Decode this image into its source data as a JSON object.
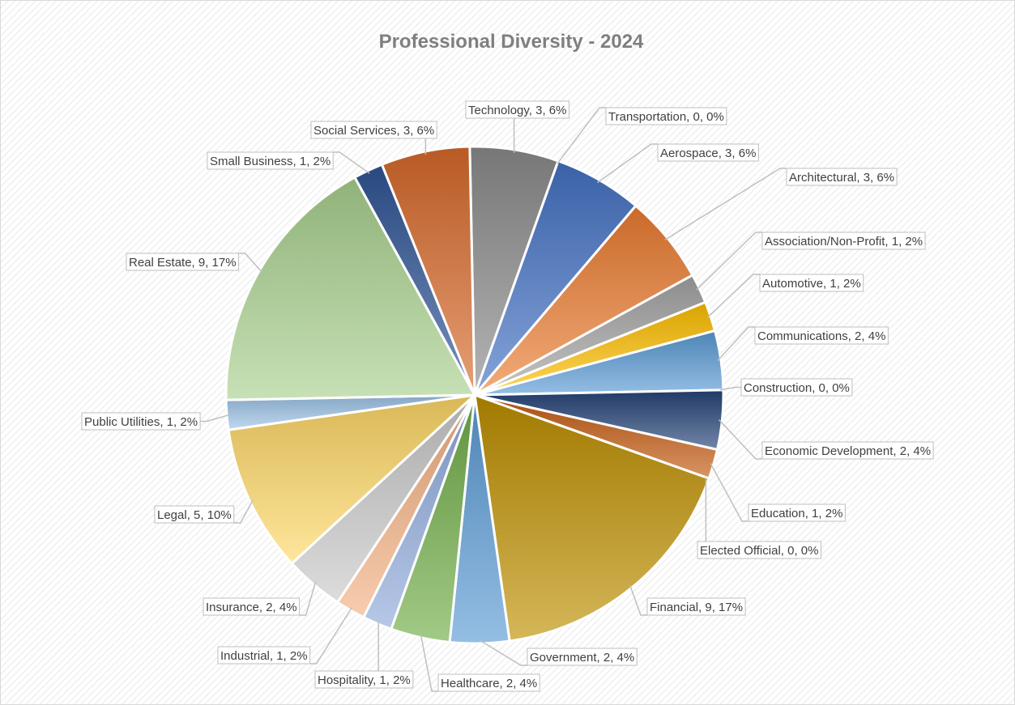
{
  "chart_data": {
    "type": "pie",
    "title": "Professional Diversity - 2024",
    "slices": [
      {
        "name": "Technology",
        "value": 3,
        "percent": "6%",
        "color": "#8c8c8c",
        "label": "Technology, 3, 6%"
      },
      {
        "name": "Transportation",
        "value": 0,
        "percent": "0%",
        "color": "#f0b020",
        "label": "Transportation, 0, 0%"
      },
      {
        "name": "Aerospace",
        "value": 3,
        "percent": "6%",
        "color": "#4472c4",
        "label": "Aerospace, 3, 6%"
      },
      {
        "name": "Architectural",
        "value": 3,
        "percent": "6%",
        "color": "#ed7d31",
        "label": "Architectural, 3, 6%"
      },
      {
        "name": "Association/Non-Profit",
        "value": 1,
        "percent": "2%",
        "color": "#a5a5a5",
        "label": "Association/Non-Profit, 1, 2%"
      },
      {
        "name": "Automotive",
        "value": 1,
        "percent": "2%",
        "color": "#ffc000",
        "label": "Automotive, 1, 2%"
      },
      {
        "name": "Communications",
        "value": 2,
        "percent": "4%",
        "color": "#5b9bd5",
        "label": "Communications, 2, 4%"
      },
      {
        "name": "Construction",
        "value": 0,
        "percent": "0%",
        "color": "#70ad47",
        "label": "Construction, 0, 0%"
      },
      {
        "name": "Economic Development",
        "value": 2,
        "percent": "4%",
        "color": "#264478",
        "label": "Economic Development, 2, 4%"
      },
      {
        "name": "Education",
        "value": 1,
        "percent": "2%",
        "color": "#c55a11",
        "label": "Education, 1, 2%"
      },
      {
        "name": "Elected Official",
        "value": 0,
        "percent": "0%",
        "color": "#7b7b7b",
        "label": "Elected Official, 0, 0%"
      },
      {
        "name": "Financial",
        "value": 9,
        "percent": "17%",
        "color": "#bf9000",
        "label": "Financial, 9, 17%"
      },
      {
        "name": "Government",
        "value": 2,
        "percent": "4%",
        "color": "#5b9bd5",
        "label": "Government, 2, 4%"
      },
      {
        "name": "Healthcare",
        "value": 2,
        "percent": "4%",
        "color": "#70ad47",
        "label": "Healthcare, 2, 4%"
      },
      {
        "name": "Hospitality",
        "value": 1,
        "percent": "2%",
        "color": "#8faadc",
        "label": "Hospitality, 1, 2%"
      },
      {
        "name": "Industrial",
        "value": 1,
        "percent": "2%",
        "color": "#f4b183",
        "label": "Industrial, 1, 2%"
      },
      {
        "name": "Insurance",
        "value": 2,
        "percent": "4%",
        "color": "#c9c9c9",
        "label": "Insurance, 2, 4%"
      },
      {
        "name": "Legal",
        "value": 5,
        "percent": "10%",
        "color": "#ffd966",
        "label": "Legal, 5, 10%"
      },
      {
        "name": "Public Utilities",
        "value": 1,
        "percent": "2%",
        "color": "#9dc3e6",
        "label": "Public Utilities, 1, 2%"
      },
      {
        "name": "Real Estate",
        "value": 9,
        "percent": "17%",
        "color": "#a9d18e",
        "label": "Real Estate, 9, 17%"
      },
      {
        "name": "Small Business",
        "value": 1,
        "percent": "2%",
        "color": "#2f5597",
        "label": "Small Business, 1, 2%"
      },
      {
        "name": "Social Services",
        "value": 3,
        "percent": "6%",
        "color": "#d86a2a",
        "label": "Social Services, 3, 6%"
      }
    ],
    "legend": "none",
    "data_labels": "outside-with-leader-lines"
  }
}
